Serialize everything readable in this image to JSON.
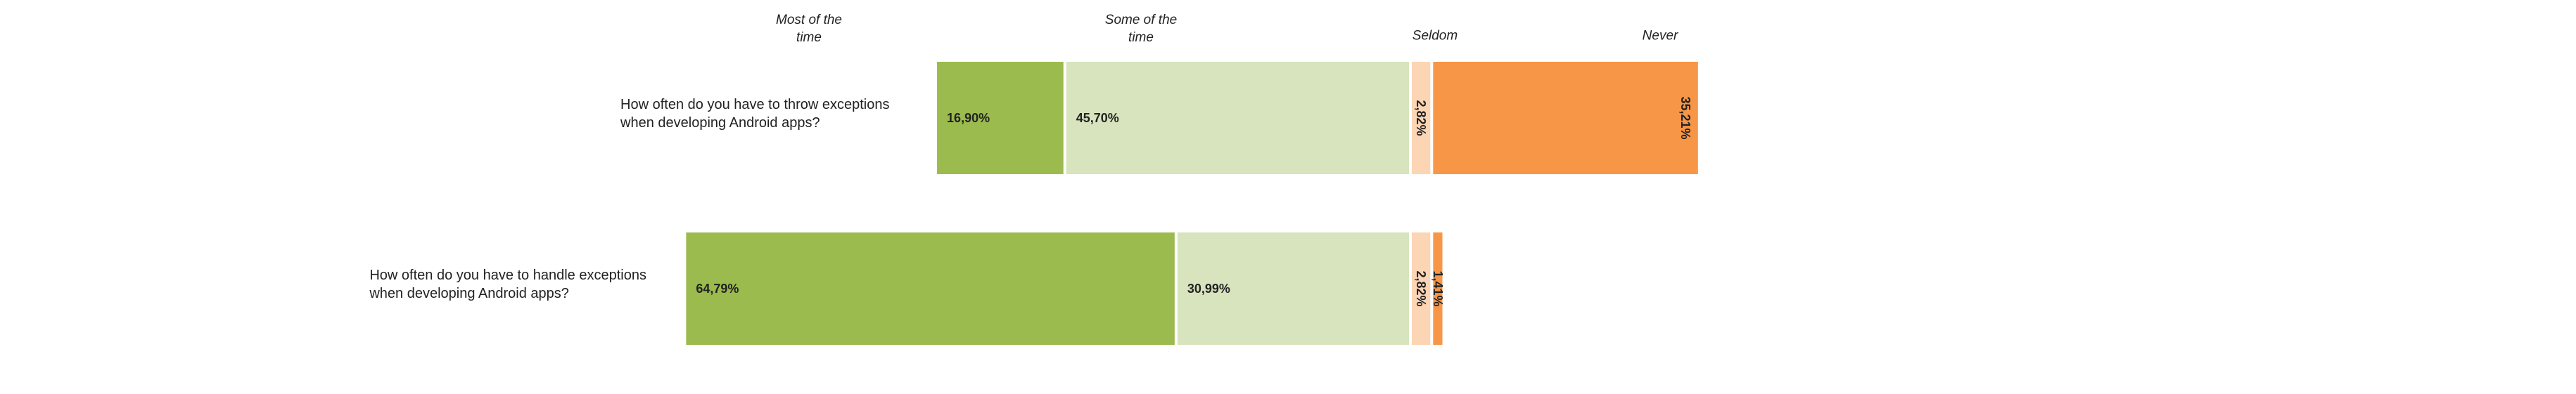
{
  "chart_data": {
    "type": "bar",
    "orientation": "horizontal",
    "stacked": "diverging",
    "categories": [
      {
        "name": "Most of the time",
        "label_lines": [
          "Most of the",
          "time"
        ],
        "color": "#9bbb4e"
      },
      {
        "name": "Some of the time",
        "label_lines": [
          "Some of the",
          "time"
        ],
        "color": "#d7e4bd"
      },
      {
        "name": "Seldom",
        "label_lines": [
          "Seldom"
        ],
        "color": "#fcd5b5"
      },
      {
        "name": "Never",
        "label_lines": [
          "Never"
        ],
        "color": "#f79646"
      }
    ],
    "rows": [
      {
        "question_lines": [
          "How often do you have to throw exceptions",
          "when developing Android apps?"
        ],
        "values": [
          16.9,
          45.7,
          2.82,
          35.21
        ],
        "labels": [
          "16,90%",
          "45,70%",
          "2,82%",
          "35,21%"
        ]
      },
      {
        "question_lines": [
          "How often do you have to handle exceptions",
          "when developing Android apps?"
        ],
        "values": [
          64.79,
          30.99,
          2.82,
          1.41
        ],
        "labels": [
          "64,79%",
          "30,99%",
          "2,82%",
          "1,41%"
        ]
      }
    ],
    "xlim": [
      -100,
      100
    ],
    "grid": false,
    "legend": "top"
  }
}
